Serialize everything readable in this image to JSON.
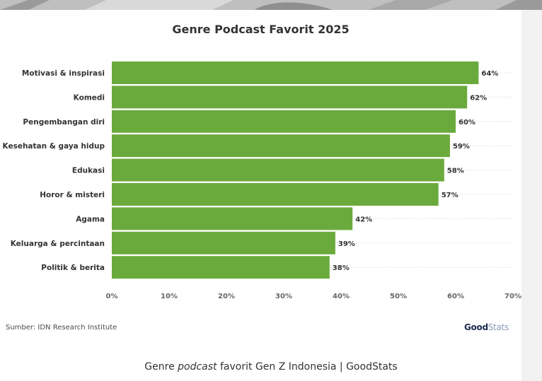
{
  "chart_data": {
    "type": "bar",
    "orientation": "horizontal",
    "title": "Genre Podcast Favorit 2025",
    "categories": [
      "Motivasi & inspirasi",
      "Komedi",
      "Pengembangan diri",
      "Kesehatan & gaya hidup",
      "Edukasi",
      "Horor & misteri",
      "Agama",
      "Keluarga & percintaan",
      "Politik & berita"
    ],
    "values": [
      64,
      62,
      60,
      59,
      58,
      57,
      42,
      39,
      38
    ],
    "value_labels": [
      "64%",
      "62%",
      "60%",
      "59%",
      "58%",
      "57%",
      "42%",
      "39%",
      "38%"
    ],
    "xlim": [
      0,
      70
    ],
    "x_ticks": [
      "0%",
      "10%",
      "20%",
      "30%",
      "40%",
      "50%",
      "60%",
      "70%"
    ],
    "bar_color": "#6aaa3c",
    "grid": "dotted horizontal guide lines",
    "legend": "none"
  },
  "source": "Sumber: IDN Research Institute",
  "logo": {
    "good": "Good",
    "stats": "Stats"
  },
  "caption": {
    "pre": "Genre ",
    "em": "podcast",
    "post": " favorit Gen Z Indonesia | GoodStats"
  },
  "colors": {
    "bar": "#6aaa3c",
    "text": "#333333",
    "logo_dark": "#1d2b4f",
    "logo_light": "#8a9bb5"
  }
}
